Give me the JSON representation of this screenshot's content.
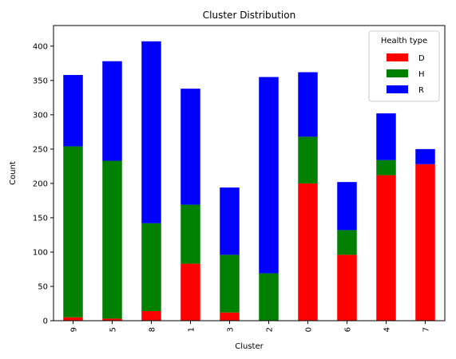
{
  "chart_data": {
    "type": "bar",
    "stacked": true,
    "title": "Cluster Distribution",
    "xlabel": "Cluster",
    "ylabel": "Count",
    "ylim": [
      0,
      430
    ],
    "yticks": [
      0,
      50,
      100,
      150,
      200,
      250,
      300,
      350,
      400
    ],
    "categories": [
      "9",
      "5",
      "8",
      "1",
      "3",
      "2",
      "0",
      "6",
      "4",
      "7"
    ],
    "series": [
      {
        "name": "D",
        "color": "#ff0000",
        "values": [
          5,
          3,
          14,
          83,
          12,
          0,
          200,
          96,
          212,
          228
        ]
      },
      {
        "name": "H",
        "color": "#008000",
        "values": [
          249,
          230,
          128,
          86,
          84,
          69,
          68,
          36,
          22,
          0
        ]
      },
      {
        "name": "R",
        "color": "#0000ff",
        "values": [
          104,
          145,
          265,
          169,
          98,
          286,
          94,
          70,
          68,
          22
        ]
      }
    ],
    "legend": {
      "title": "Health type",
      "placement": "top-right"
    },
    "grid": false
  }
}
